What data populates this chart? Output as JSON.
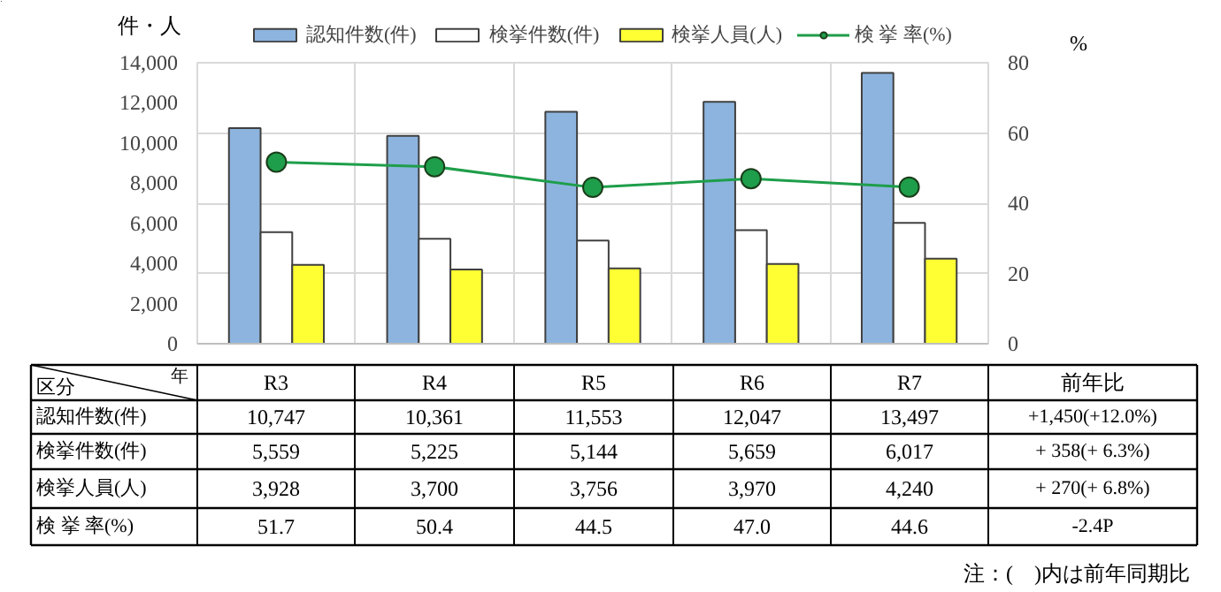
{
  "chart_data": {
    "type": "bar",
    "categories": [
      "R3",
      "R4",
      "R5",
      "R6",
      "R7"
    ],
    "series": [
      {
        "name": "認知件数(件)",
        "color": "#8db4de",
        "values": [
          10747,
          10361,
          11553,
          12047,
          13497
        ],
        "value_labels": [
          "10,747",
          "10,361",
          "11,553",
          "12,047",
          "13,497"
        ]
      },
      {
        "name": "検挙件数(件)",
        "color": "#ffffff",
        "values": [
          5559,
          5225,
          5144,
          5659,
          6017
        ],
        "value_labels": [
          "5,559",
          "5,225",
          "5,144",
          "5,659",
          "6,017"
        ]
      },
      {
        "name": "検挙人員(人)",
        "color": "#ffff33",
        "values": [
          3928,
          3700,
          3756,
          3970,
          4240
        ],
        "value_labels": [
          "3,928",
          "3,700",
          "3,756",
          "3,970",
          "4,240"
        ]
      },
      {
        "name": "検 挙 率(%)",
        "type": "line",
        "axis": "y2",
        "color": "#1e9e4a",
        "marker": "circle",
        "values": [
          51.7,
          50.4,
          44.5,
          47.0,
          44.6
        ],
        "value_labels": [
          "51.7",
          "50.4",
          "44.5",
          "47.0",
          "44.6"
        ]
      }
    ],
    "ylabel": "件・人",
    "y2label": "%",
    "ylim": [
      0,
      14000
    ],
    "yticks": [
      {
        "value": 0,
        "label": "0"
      },
      {
        "value": 2000,
        "label": "2,000"
      },
      {
        "value": 4000,
        "label": "4,000"
      },
      {
        "value": 6000,
        "label": "6,000"
      },
      {
        "value": 8000,
        "label": "8,000"
      },
      {
        "value": 10000,
        "label": "10,000"
      },
      {
        "value": 12000,
        "label": "12,000"
      },
      {
        "value": 14000,
        "label": "14,000"
      }
    ],
    "y2lim": [
      0,
      80
    ],
    "y2ticks": [
      0,
      20,
      40,
      60,
      80
    ],
    "grid": true,
    "legend": "top",
    "annotations": [
      "区分",
      "年",
      "前年比",
      "+1,450(+12.0%)",
      "+ 358(+ 6.3%)",
      "+ 270(+ 6.8%)",
      "-2.4P",
      "注：(　)内は前年同期比"
    ]
  }
}
